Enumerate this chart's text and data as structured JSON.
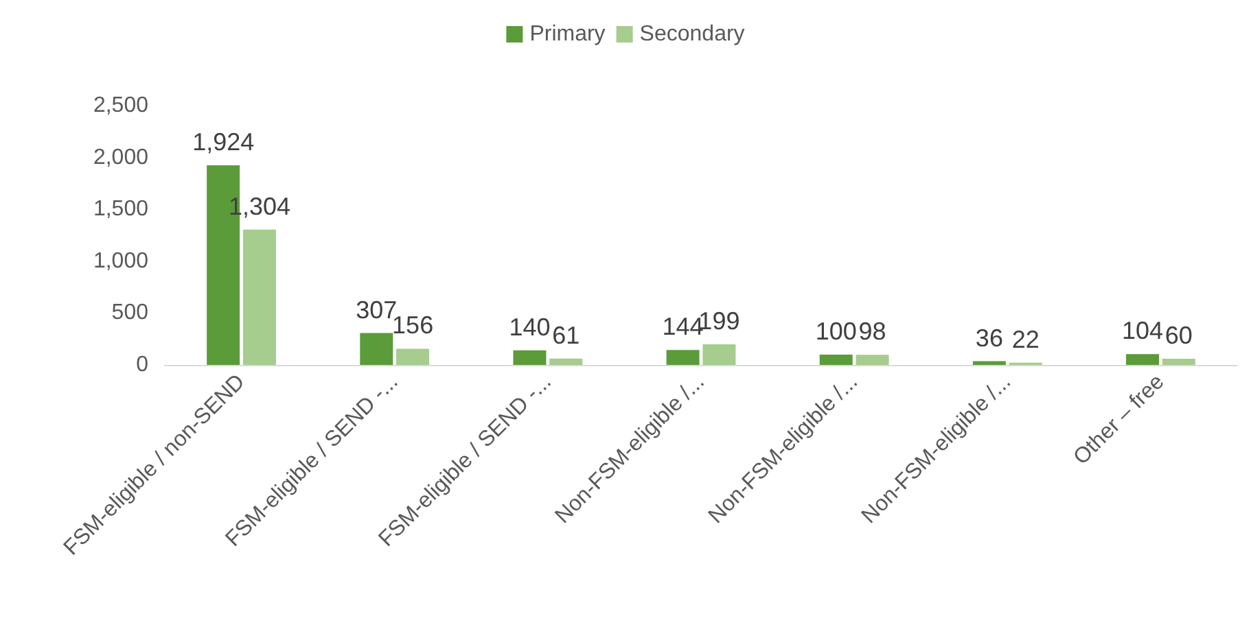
{
  "chart_data": {
    "type": "bar",
    "categories": [
      "FSM-eligible / non-SEND",
      "FSM-eligible / SEND -...",
      "FSM-eligible / SEND -...",
      "Non-FSM-eligible /...",
      "Non-FSM-eligible /...",
      "Non-FSM-eligible /...",
      "Other – free"
    ],
    "series": [
      {
        "name": "Primary",
        "color": "#5b9b3a",
        "values": [
          1924,
          307,
          140,
          144,
          100,
          36,
          104
        ],
        "value_labels": [
          "1,924",
          "307",
          "140",
          "144",
          "100",
          "36",
          "104"
        ]
      },
      {
        "name": "Secondary",
        "color": "#a6cc8e",
        "values": [
          1304,
          156,
          61,
          199,
          98,
          22,
          60
        ],
        "value_labels": [
          "1,304",
          "156",
          "61",
          "199",
          "98",
          "22",
          "60"
        ]
      }
    ],
    "ylim": [
      0,
      2500
    ],
    "yticks": [
      {
        "value": 0,
        "label": "0"
      },
      {
        "value": 500,
        "label": "500"
      },
      {
        "value": 1000,
        "label": "1,000"
      },
      {
        "value": 1500,
        "label": "1,500"
      },
      {
        "value": 2000,
        "label": "2,000"
      },
      {
        "value": 2500,
        "label": "2,500"
      }
    ],
    "grid": false,
    "legend": "top"
  }
}
